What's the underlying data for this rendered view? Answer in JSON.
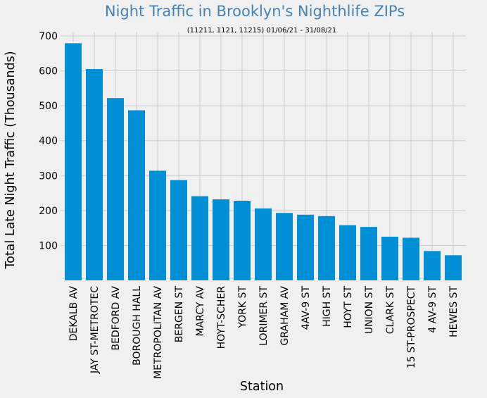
{
  "chart_data": {
    "type": "bar",
    "title": "Night Traffic in Brooklyn's Nighthlife ZIPs",
    "subtitle": "(11211, 1121, 11215) 01/06/21 - 31/08/21",
    "xlabel": "Station",
    "ylabel": "Total Late Night Traffic (Thousands)",
    "categories": [
      "DEKALB AV",
      "JAY ST-METROTEC",
      "BEDFORD AV",
      "BOROUGH HALL",
      "METROPOLITAN AV",
      "BERGEN ST",
      "MARCY AV",
      "HOYT-SCHER",
      "YORK ST",
      "LORIMER ST",
      "GRAHAM AV",
      "4AV-9 ST",
      "HIGH ST",
      "HOYT ST",
      "UNION ST",
      "CLARK ST",
      "15 ST-PROSPECT",
      "4 AV-9 ST",
      "HEWES ST"
    ],
    "values": [
      679,
      605,
      522,
      487,
      314,
      287,
      241,
      232,
      228,
      206,
      193,
      188,
      184,
      158,
      153,
      125,
      122,
      84,
      72
    ],
    "ylim": [
      0,
      710
    ],
    "yticks": [
      100,
      200,
      300,
      400,
      500,
      600,
      700
    ],
    "grid": true,
    "bar_color": "#008fd5",
    "background": "#f0f0f0"
  }
}
